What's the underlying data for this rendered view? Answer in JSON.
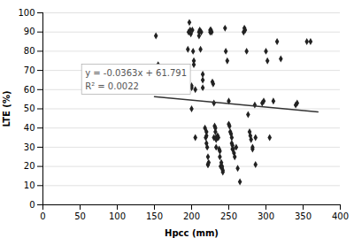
{
  "chart_data": {
    "type": "scatter",
    "xlabel": "Hpcc (mm)",
    "ylabel": "LTE (%)",
    "xlim": [
      0,
      400
    ],
    "ylim": [
      0,
      100
    ],
    "xticks": [
      0,
      50,
      100,
      150,
      200,
      250,
      300,
      350,
      400
    ],
    "yticks": [
      0,
      10,
      20,
      30,
      40,
      50,
      60,
      70,
      80,
      90,
      100
    ],
    "grid": "y",
    "annotations": [
      "y = -0.0363x + 61.791",
      "R² = 0.0022"
    ],
    "series": [
      {
        "type": "scatter",
        "color": "#222222",
        "marker": "diamond",
        "x": [
          152,
          155,
          195,
          196,
          197,
          198,
          199,
          200,
          200,
          200,
          201,
          202,
          203,
          203,
          205,
          205,
          210,
          210,
          211,
          212,
          213,
          215,
          215,
          215,
          218,
          219,
          220,
          220,
          220,
          221,
          222,
          222,
          222,
          223,
          225,
          225,
          226,
          227,
          228,
          229,
          230,
          230,
          231,
          232,
          232,
          233,
          233,
          233,
          235,
          236,
          237,
          238,
          238,
          239,
          240,
          241,
          241,
          242,
          242,
          245,
          246,
          248,
          250,
          250,
          251,
          252,
          253,
          254,
          254,
          255,
          255,
          256,
          257,
          258,
          260,
          262,
          265,
          270,
          271,
          272,
          274,
          276,
          278,
          279,
          280,
          282,
          282,
          285,
          286,
          286,
          295,
          297,
          300,
          302,
          305,
          310,
          315,
          320,
          340,
          342,
          355,
          360
        ],
        "values": [
          88,
          73,
          81,
          90,
          95,
          91,
          89,
          62,
          61,
          50,
          91,
          80,
          75,
          73,
          60,
          35,
          90,
          88,
          91,
          81,
          90,
          68,
          65,
          61,
          40,
          35,
          38,
          36,
          32,
          30,
          25,
          21,
          21,
          22,
          90,
          91,
          91,
          90,
          64,
          63,
          53,
          35,
          41,
          40,
          38,
          35,
          34,
          30,
          36,
          35,
          29,
          28,
          25,
          20,
          22,
          20,
          19,
          18,
          17,
          92,
          80,
          75,
          54,
          42,
          41,
          38,
          37,
          35,
          32,
          31,
          29,
          29,
          27,
          25,
          30,
          19,
          12,
          90,
          92,
          91,
          80,
          47,
          38,
          36,
          34,
          30,
          29,
          52,
          35,
          21,
          53,
          54,
          80,
          75,
          35,
          54,
          85,
          76,
          52,
          53,
          85,
          85
        ]
      },
      {
        "type": "line",
        "color": "#333333",
        "line_style": "solid",
        "x": [
          150,
          370
        ],
        "values": [
          56.346,
          48.36
        ]
      }
    ]
  }
}
